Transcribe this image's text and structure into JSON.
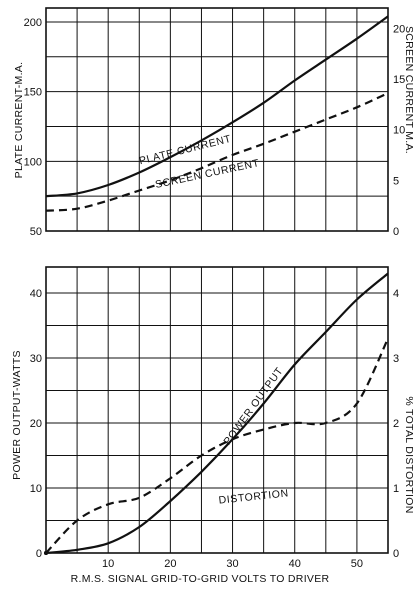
{
  "chart_data": [
    {
      "type": "line",
      "xlim": [
        0,
        55
      ],
      "ylim": [
        50,
        210
      ],
      "y2lim": [
        0,
        22
      ],
      "grid": true,
      "xticks": [],
      "yticks": [
        50,
        100,
        150,
        200
      ],
      "y2ticks": [
        0,
        5,
        10,
        15,
        20
      ],
      "ylabel": "PLATE CURRENT-M.A.",
      "y2label": "SCREEN CURRENT M.A.",
      "series": [
        {
          "name": "PLATE CURRENT",
          "axis": "left",
          "style": "solid",
          "x": [
            0,
            5,
            10,
            15,
            20,
            25,
            30,
            35,
            40,
            45,
            50,
            55
          ],
          "y": [
            75,
            77,
            83,
            92,
            103,
            115,
            128,
            142,
            158,
            173,
            188,
            204
          ]
        },
        {
          "name": "SCREEN CURRENT",
          "axis": "right",
          "style": "dashed",
          "x": [
            0,
            5,
            10,
            15,
            20,
            25,
            30,
            35,
            40,
            45,
            50,
            55
          ],
          "y": [
            2.0,
            2.2,
            3.0,
            4.0,
            5.0,
            6.2,
            7.5,
            8.6,
            9.8,
            11.0,
            12.2,
            13.6
          ]
        }
      ]
    },
    {
      "type": "line",
      "xlim": [
        0,
        55
      ],
      "ylim": [
        0,
        44
      ],
      "y2lim": [
        0,
        4.4
      ],
      "grid": true,
      "xticks": [
        10,
        20,
        30,
        40,
        50
      ],
      "yticks": [
        0,
        10,
        20,
        30,
        40
      ],
      "y2ticks": [
        0,
        1,
        2,
        3,
        4
      ],
      "ylabel": "POWER OUTPUT-WATTS",
      "y2label": "% TOTAL DISTORTION",
      "xlabel": "R.M.S. SIGNAL GRID-TO-GRID VOLTS TO DRIVER",
      "series": [
        {
          "name": "POWER OUTPUT",
          "axis": "left",
          "style": "solid",
          "x": [
            0,
            5,
            10,
            15,
            20,
            25,
            30,
            35,
            40,
            45,
            50,
            55
          ],
          "y": [
            0,
            0.5,
            1.5,
            4,
            8,
            12.5,
            17.5,
            23,
            29,
            34,
            39,
            43
          ]
        },
        {
          "name": "DISTORTION",
          "axis": "right",
          "style": "dashed",
          "x": [
            0,
            5,
            10,
            15,
            20,
            25,
            30,
            35,
            40,
            45,
            50,
            55
          ],
          "y": [
            0,
            0.5,
            0.75,
            0.85,
            1.15,
            1.5,
            1.75,
            1.9,
            2.0,
            2.0,
            2.3,
            3.3
          ]
        }
      ]
    }
  ]
}
